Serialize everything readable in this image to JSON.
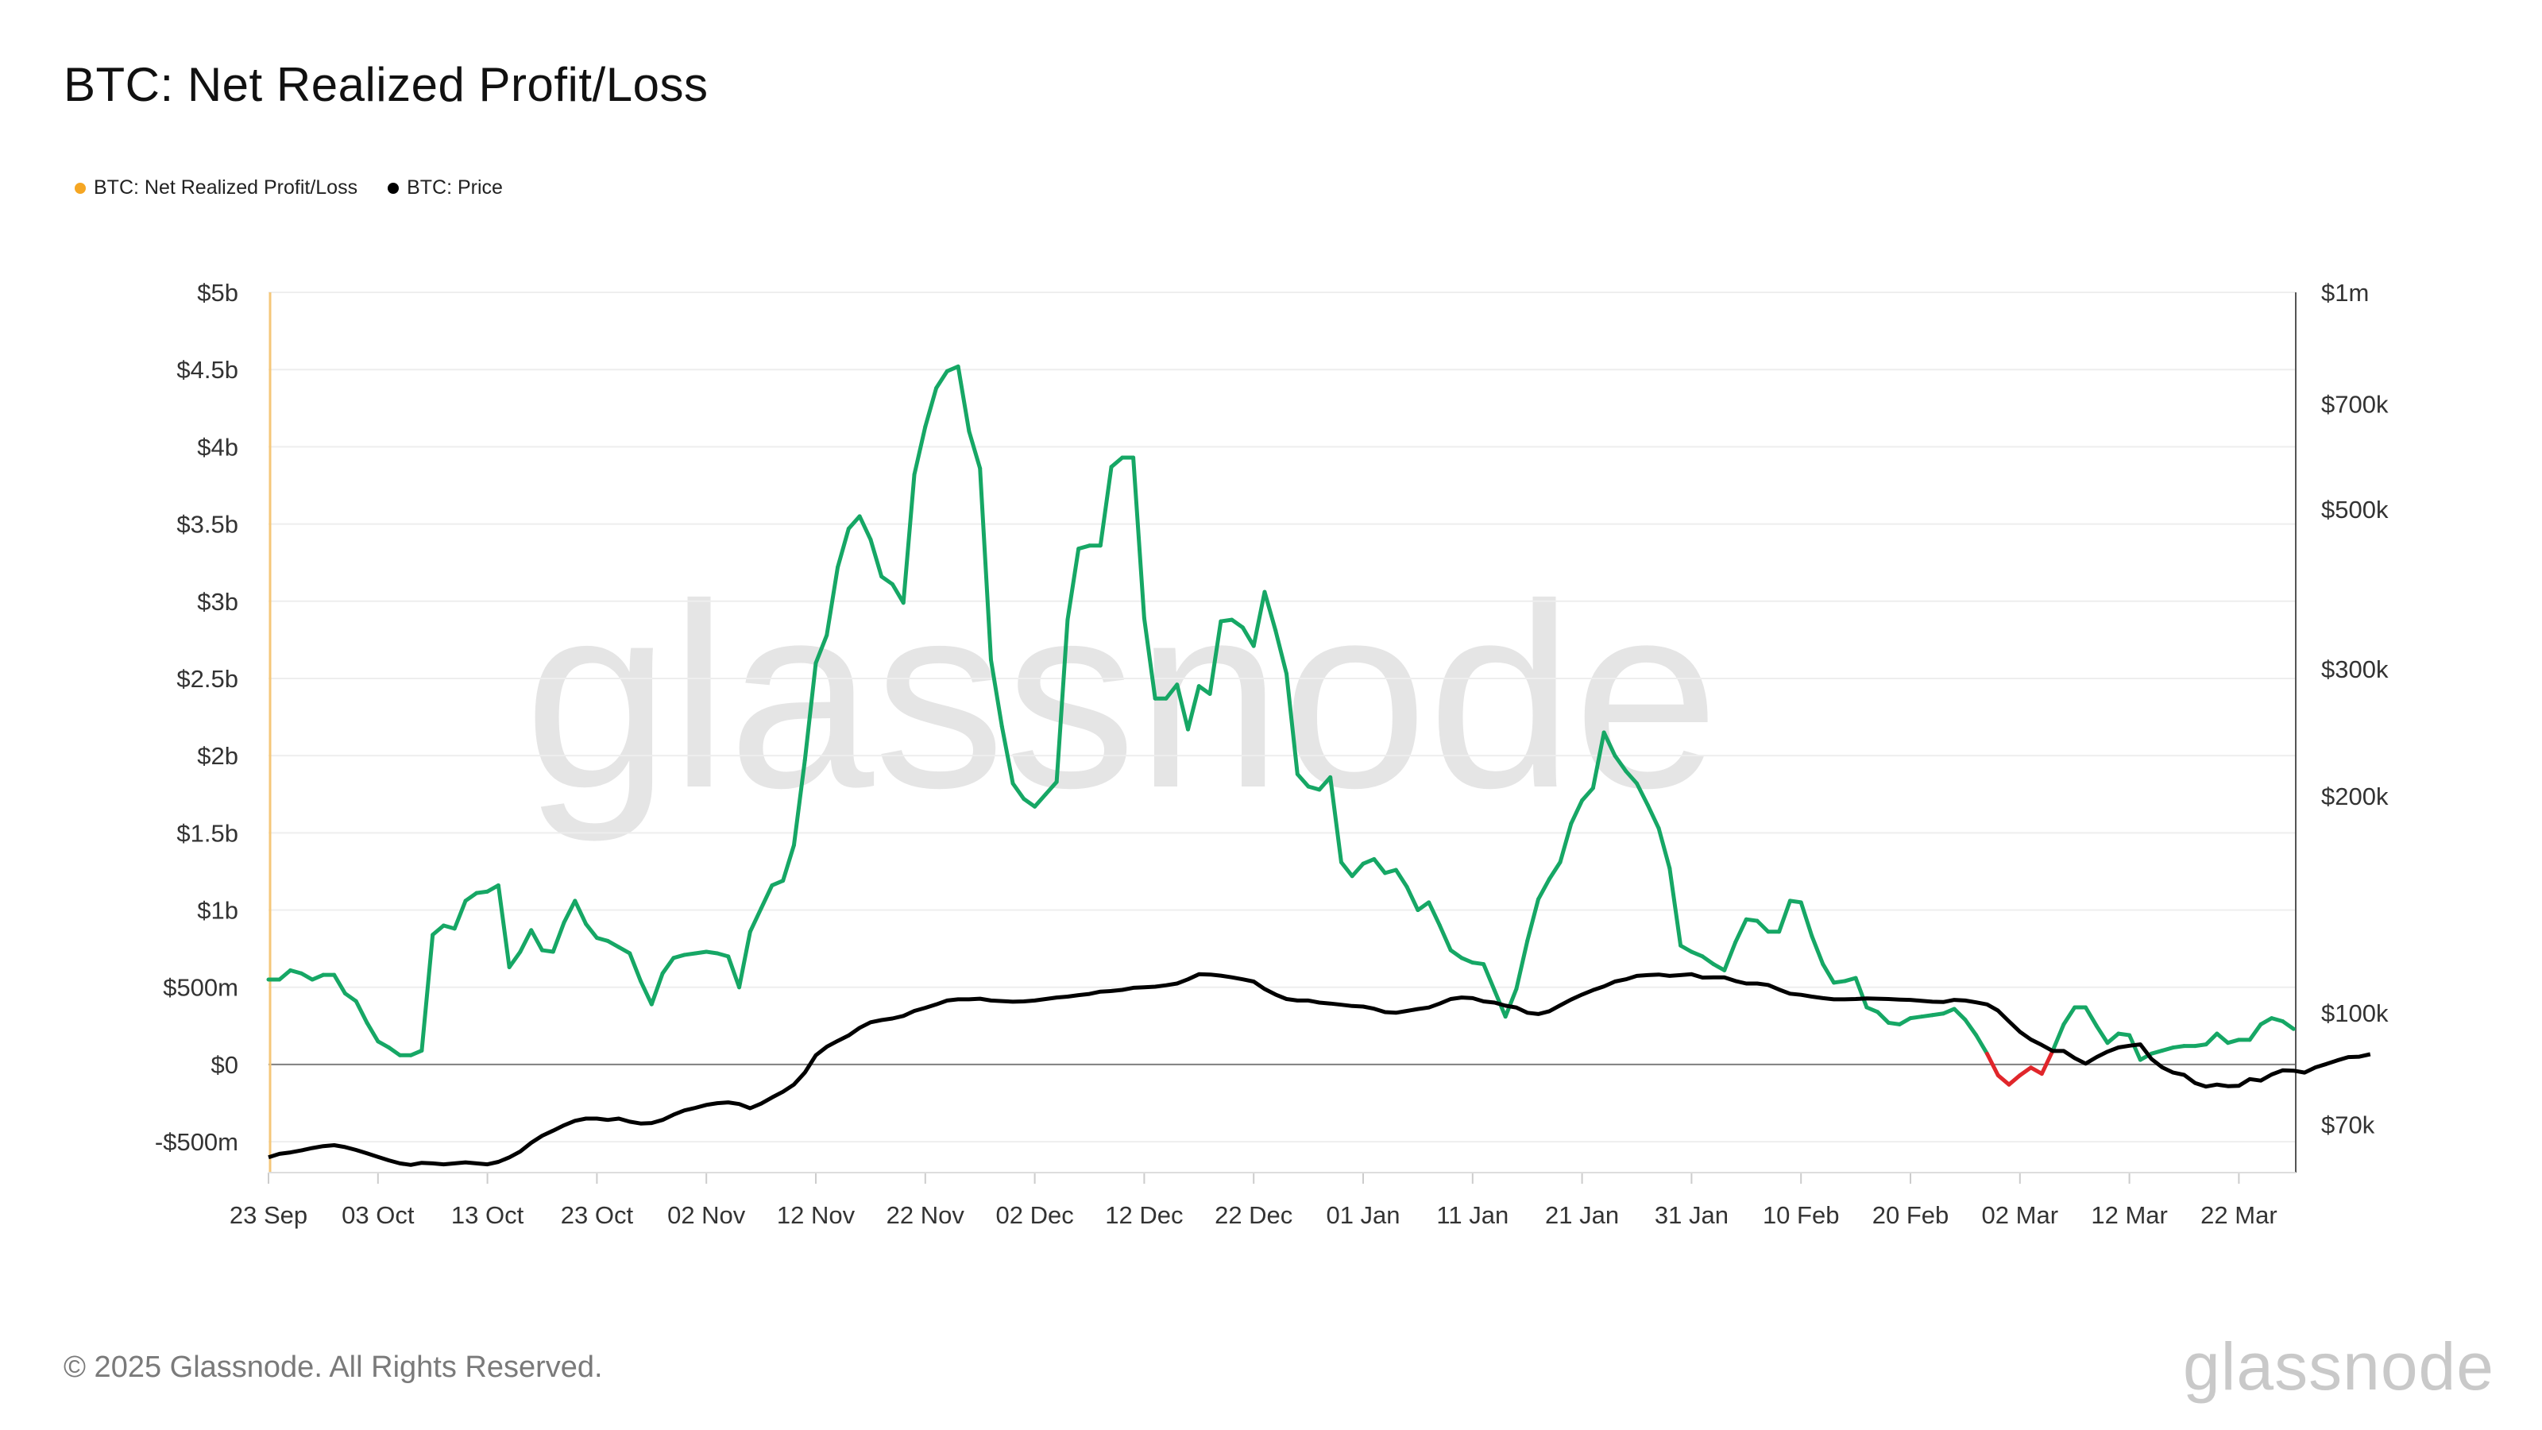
{
  "chart_data": {
    "type": "line",
    "title": "BTC: Net Realized Profit/Loss",
    "legend": [
      {
        "name": "BTC: Net Realized Profit/Loss",
        "color": "#f5a623"
      },
      {
        "name": "BTC: Price",
        "color": "#000000"
      }
    ],
    "legend_position": "top-left",
    "colors": {
      "profit": "#16a765",
      "loss": "#e0262b",
      "price": "#000000",
      "accent": "#f5a623"
    },
    "x_start": "2024-09-23",
    "x_ticks": [
      "23 Sep",
      "03 Oct",
      "13 Oct",
      "23 Oct",
      "02 Nov",
      "12 Nov",
      "22 Nov",
      "02 Dec",
      "12 Dec",
      "22 Dec",
      "01 Jan",
      "11 Jan",
      "21 Jan",
      "31 Jan",
      "10 Feb",
      "20 Feb",
      "02 Mar",
      "12 Mar",
      "22 Mar"
    ],
    "y_left": {
      "label": "",
      "range": [
        -700000000,
        5000000000
      ],
      "ticks": [
        5000000000,
        4500000000,
        4000000000,
        3500000000,
        3000000000,
        2500000000,
        2000000000,
        1500000000,
        1000000000,
        500000000,
        0,
        -500000000
      ],
      "tick_labels": [
        "$5b",
        "$4.5b",
        "$4b",
        "$3.5b",
        "$3b",
        "$2.5b",
        "$2b",
        "$1.5b",
        "$1b",
        "$500m",
        "$0",
        "-$500m"
      ]
    },
    "y_right": {
      "label": "",
      "scale": "log",
      "range": [
        60000,
        1000000
      ],
      "ticks": [
        1000000,
        700000,
        500000,
        300000,
        200000,
        100000,
        70000
      ],
      "tick_labels": [
        "$1m",
        "$700k",
        "$500k",
        "$300k",
        "$200k",
        "$100k",
        "$70k"
      ]
    },
    "series": [
      {
        "name": "BTC: Net Realized Profit/Loss",
        "axis": "left",
        "values": [
          0.55,
          0.55,
          0.61,
          0.59,
          0.55,
          0.58,
          0.58,
          0.46,
          0.41,
          0.27,
          0.15,
          0.11,
          0.06,
          0.06,
          0.09,
          0.84,
          0.9,
          0.88,
          1.06,
          1.11,
          1.12,
          1.16,
          0.63,
          0.73,
          0.87,
          0.74,
          0.73,
          0.92,
          1.06,
          0.91,
          0.82,
          0.8,
          0.76,
          0.72,
          0.54,
          0.39,
          0.59,
          0.69,
          0.71,
          0.72,
          0.73,
          0.72,
          0.7,
          0.5,
          0.86,
          1.01,
          1.16,
          1.19,
          1.42,
          1.97,
          2.6,
          2.78,
          3.22,
          3.47,
          3.55,
          3.4,
          3.16,
          3.11,
          2.99,
          3.82,
          4.13,
          4.38,
          4.49,
          4.52,
          4.1,
          3.86,
          2.62,
          2.19,
          1.82,
          1.72,
          1.67,
          1.75,
          1.83,
          2.88,
          3.34,
          3.36,
          3.36,
          3.87,
          3.93,
          3.93,
          2.89,
          2.37,
          2.37,
          2.46,
          2.17,
          2.45,
          2.4,
          2.87,
          2.88,
          2.83,
          2.71,
          3.06,
          2.81,
          2.53,
          1.88,
          1.8,
          1.78,
          1.86,
          1.31,
          1.22,
          1.3,
          1.33,
          1.24,
          1.26,
          1.15,
          1.0,
          1.05,
          0.9,
          0.74,
          0.69,
          0.66,
          0.65,
          0.48,
          0.31,
          0.49,
          0.8,
          1.07,
          1.2,
          1.31,
          1.56,
          1.71,
          1.79,
          2.15,
          2.0,
          1.9,
          1.82,
          1.68,
          1.53,
          1.27,
          0.77,
          0.73,
          0.7,
          0.65,
          0.61,
          0.79,
          0.94,
          0.93,
          0.86,
          0.86,
          1.06,
          1.05,
          0.83,
          0.65,
          0.53,
          0.54,
          0.56,
          0.37,
          0.34,
          0.27,
          0.26,
          0.3,
          0.31,
          0.32,
          0.33,
          0.36,
          0.29,
          0.19,
          0.07,
          -0.07,
          -0.13,
          -0.07,
          -0.02,
          -0.06,
          0.09,
          0.26,
          0.37,
          0.37,
          0.25,
          0.14,
          0.2,
          0.19,
          0.03,
          0.07,
          0.09,
          0.11,
          0.12,
          0.12,
          0.13,
          0.2,
          0.14,
          0.16,
          0.16,
          0.26,
          0.3,
          0.28,
          0.23
        ]
      },
      {
        "name": "BTC: Price",
        "axis": "right",
        "values": [
          63000,
          63700,
          64000,
          64400,
          64900,
          65300,
          65500,
          65100,
          64500,
          63800,
          63100,
          62400,
          61800,
          61500,
          61900,
          61800,
          61600,
          61800,
          62000,
          61800,
          61600,
          62100,
          63000,
          64200,
          66000,
          67500,
          68600,
          69800,
          70800,
          71300,
          71300,
          71000,
          71300,
          70600,
          70200,
          70300,
          71000,
          72200,
          73200,
          73800,
          74500,
          74900,
          75100,
          74700,
          73700,
          74800,
          76300,
          77700,
          79500,
          82600,
          87300,
          89700,
          91400,
          93000,
          95300,
          97000,
          97700,
          98200,
          99000,
          100600,
          101600,
          102700,
          104000,
          104400,
          104400,
          104600,
          104000,
          103800,
          103600,
          103700,
          104000,
          104500,
          105000,
          105300,
          105800,
          106200,
          107000,
          107200,
          107600,
          108300,
          108500,
          108700,
          109200,
          109800,
          111300,
          113100,
          113000,
          112600,
          112000,
          111300,
          110500,
          107900,
          106000,
          104500,
          104000,
          104000,
          103300,
          103000,
          102600,
          102200,
          102000,
          101300,
          100200,
          100000,
          100600,
          101200,
          101700,
          103000,
          104500,
          105000,
          104800,
          103700,
          103300,
          102300,
          101700,
          100000,
          99600,
          100500,
          102400,
          104300,
          106000,
          107500,
          108800,
          110500,
          111300,
          112500,
          112800,
          113000,
          112500,
          112800,
          113100,
          111900,
          112000,
          112000,
          110700,
          109800,
          109800,
          109300,
          107700,
          106300,
          105900,
          105300,
          104800,
          104400,
          104400,
          104500,
          104700,
          104600,
          104500,
          104300,
          104200,
          103900,
          103600,
          103500,
          104200,
          104000,
          103400,
          102700,
          100700,
          97300,
          94100,
          91800,
          90200,
          88500,
          88500,
          86500,
          85000,
          86800,
          88300,
          89500,
          90000,
          90400,
          86300,
          84000,
          82600,
          82000,
          79900,
          79000,
          79500,
          79100,
          79200,
          80900,
          80500,
          82100,
          83200,
          83100,
          82600,
          84000,
          84900,
          85900,
          86800,
          86900,
          87600
        ]
      }
    ],
    "grid": true,
    "watermark": "glassnode"
  },
  "footer": {
    "copyright": "© 2025 Glassnode. All Rights Reserved.",
    "logo": "glassnode"
  }
}
